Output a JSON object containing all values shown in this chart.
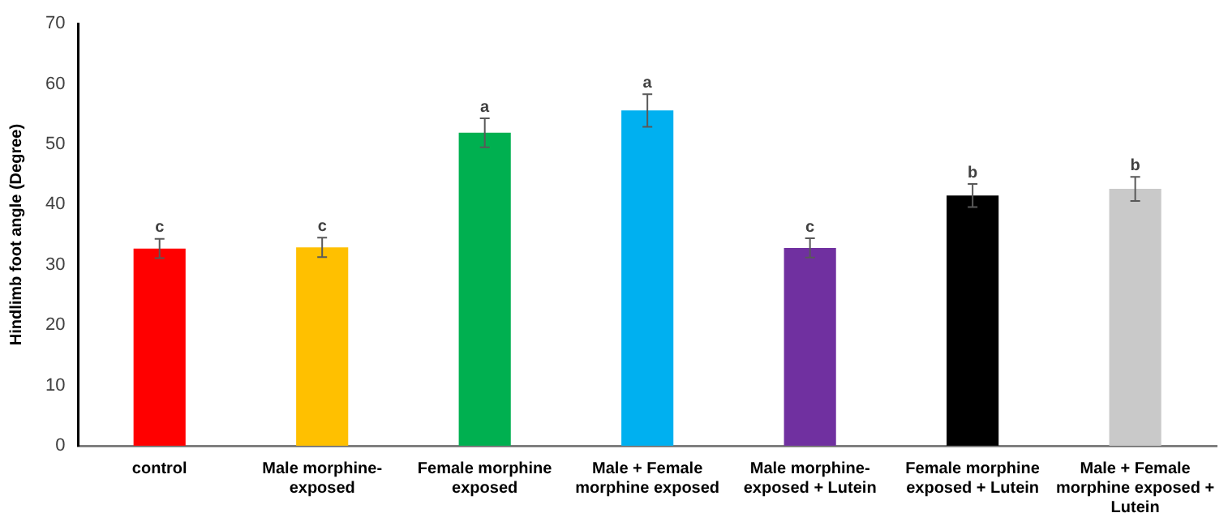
{
  "chart_data": {
    "type": "bar",
    "ylabel": "Hindlimb foot angle (Degree)",
    "categories": [
      "control",
      "Male morphine-exposed",
      "Female morphine exposed",
      "Male + Female morphine exposed",
      "Male morphine-exposed + Lutein",
      "Female morphine exposed + Lutein",
      "Male + Female morphine exposed + Lutein"
    ],
    "values": [
      32.7,
      32.9,
      51.9,
      55.6,
      32.8,
      41.5,
      42.6
    ],
    "errors": [
      1.6,
      1.6,
      2.4,
      2.7,
      1.6,
      1.9,
      2.0
    ],
    "colors": [
      "#ff0000",
      "#ffc000",
      "#00b050",
      "#00b0f0",
      "#7030a0",
      "#000000",
      "#c9c9c9"
    ],
    "ylim": [
      0,
      70
    ],
    "yticks": [
      0,
      10,
      20,
      30,
      40,
      50,
      60,
      70
    ],
    "grid": false,
    "legend": false,
    "annotations": [
      {
        "text": "c",
        "x": "control",
        "y": 34.3
      },
      {
        "text": "c",
        "x": "Male morphine-exposed",
        "y": 34.5
      },
      {
        "text": "a",
        "x": "Female morphine exposed",
        "y": 54.3
      },
      {
        "text": "a",
        "x": "Male + Female morphine exposed",
        "y": 58.3
      },
      {
        "text": "c",
        "x": "Male morphine-exposed + Lutein",
        "y": 34.4
      },
      {
        "text": "b",
        "x": "Female morphine exposed + Lutein",
        "y": 43.4
      },
      {
        "text": "b",
        "x": "Male + Female morphine exposed + Lutein",
        "y": 44.6
      }
    ]
  }
}
